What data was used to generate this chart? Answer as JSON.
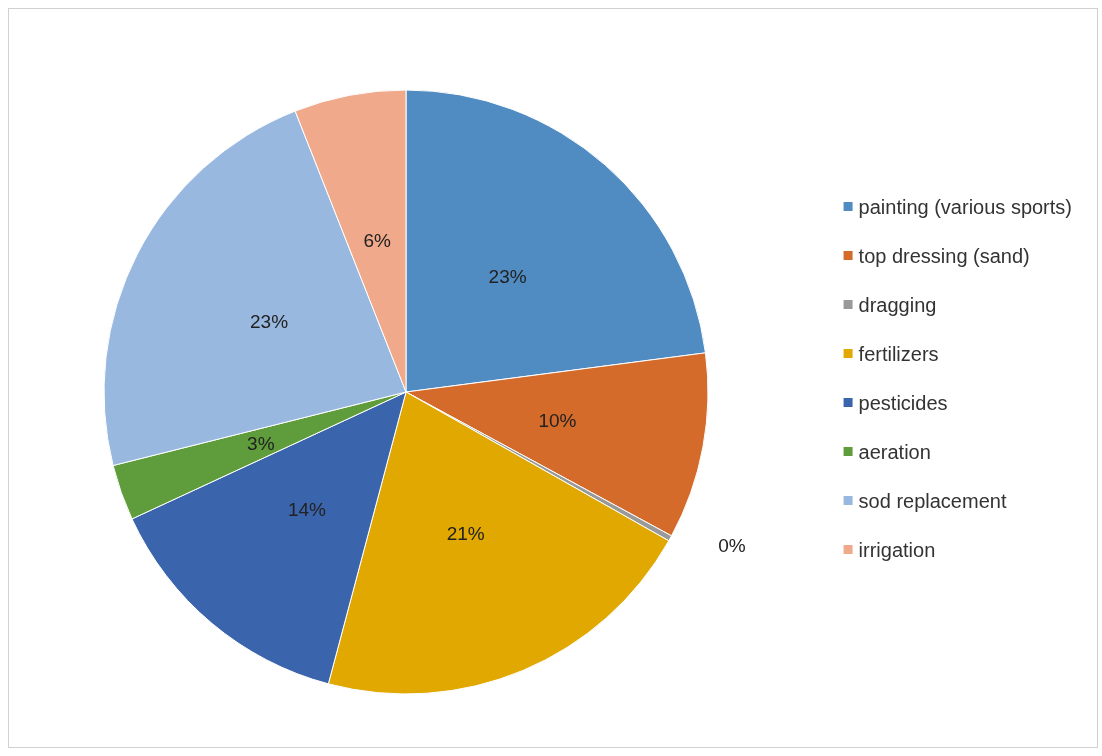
{
  "chart_data": {
    "type": "pie",
    "categories": [
      "painting (various sports)",
      "top dressing (sand)",
      "dragging",
      "fertilizers",
      "pesticides",
      "aeration",
      "sod replacement",
      "irrigation"
    ],
    "values": [
      23,
      10,
      0.3,
      21,
      14,
      3,
      23,
      6
    ],
    "value_labels": [
      "23%",
      "10%",
      "0%",
      "21%",
      "14%",
      "3%",
      "23%",
      "6%"
    ],
    "colors": [
      "#508bc2",
      "#d46b2a",
      "#999999",
      "#e0a800",
      "#3a64ab",
      "#5e9c3c",
      "#98b8df",
      "#f0a98a"
    ],
    "legend": "right"
  }
}
